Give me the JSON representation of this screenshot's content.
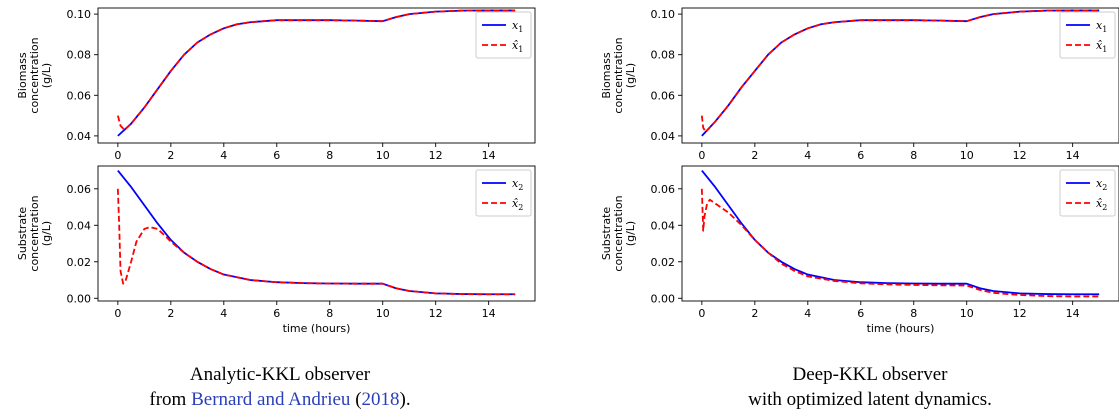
{
  "panels": [
    {
      "caption_line1": "Analytic-KKL observer",
      "caption_prefix": "from ",
      "caption_link": "Bernard and Andrieu",
      "caption_paren_open": " (",
      "caption_year": "2018",
      "caption_suffix": ")."
    },
    {
      "caption_line1": "Deep-KKL observer",
      "caption_line2": "with optimized latent dynamics."
    }
  ],
  "colors": {
    "true": "#0000ff",
    "est": "#ff0000"
  },
  "chart_data": [
    {
      "type": "line",
      "panel": "left-top",
      "ylabel": [
        "Biomass",
        "concentration",
        "(g/L)"
      ],
      "xlabel": "",
      "xlim": [
        -0.75,
        15.75
      ],
      "ylim": [
        0.0365,
        0.103
      ],
      "xticks": [
        0,
        2,
        4,
        6,
        8,
        10,
        12,
        14
      ],
      "yticks": [
        0.04,
        0.06,
        0.08,
        0.1
      ],
      "ytick_labels": [
        "0.04",
        "0.06",
        "0.08",
        "0.10"
      ],
      "legend": "top-right",
      "series": [
        {
          "name": "x_1",
          "style": "solid",
          "x": [
            0,
            0.5,
            1,
            1.5,
            2,
            2.5,
            3,
            3.5,
            4,
            4.5,
            5,
            6,
            7,
            8,
            9,
            10,
            10.5,
            11,
            12,
            13,
            14,
            15
          ],
          "y": [
            0.04,
            0.046,
            0.054,
            0.063,
            0.072,
            0.08,
            0.086,
            0.09,
            0.093,
            0.095,
            0.096,
            0.097,
            0.097,
            0.097,
            0.0968,
            0.0965,
            0.0985,
            0.1,
            0.1012,
            0.1017,
            0.1018,
            0.1018
          ]
        },
        {
          "name": "x̂_1",
          "style": "dashed",
          "x": [
            0,
            0.1,
            0.25,
            0.5,
            1,
            1.5,
            2,
            2.5,
            3,
            3.5,
            4,
            4.5,
            5,
            6,
            7,
            8,
            9,
            10,
            10.5,
            11,
            12,
            13,
            14,
            15
          ],
          "y": [
            0.05,
            0.045,
            0.043,
            0.046,
            0.054,
            0.063,
            0.072,
            0.08,
            0.086,
            0.09,
            0.093,
            0.095,
            0.096,
            0.097,
            0.097,
            0.097,
            0.0968,
            0.0965,
            0.0985,
            0.1,
            0.1012,
            0.1017,
            0.1018,
            0.1018
          ]
        }
      ]
    },
    {
      "type": "line",
      "panel": "left-bottom",
      "ylabel": [
        "Substrate",
        "concentration",
        "(g/L)"
      ],
      "xlabel": "time (hours)",
      "xlim": [
        -0.75,
        15.75
      ],
      "ylim": [
        -0.0015,
        0.0725
      ],
      "xticks": [
        0,
        2,
        4,
        6,
        8,
        10,
        12,
        14
      ],
      "yticks": [
        0,
        0.02,
        0.04,
        0.06
      ],
      "ytick_labels": [
        "0.00",
        "0.02",
        "0.04",
        "0.06"
      ],
      "legend": "top-right",
      "series": [
        {
          "name": "x_2",
          "style": "solid",
          "x": [
            0,
            0.5,
            1,
            1.5,
            2,
            2.5,
            3,
            3.5,
            4,
            5,
            6,
            7,
            8,
            9,
            10,
            10.5,
            11,
            12,
            13,
            14,
            15
          ],
          "y": [
            0.07,
            0.061,
            0.051,
            0.041,
            0.032,
            0.025,
            0.02,
            0.016,
            0.013,
            0.01,
            0.0088,
            0.0083,
            0.0081,
            0.008,
            0.008,
            0.0055,
            0.004,
            0.0027,
            0.0023,
            0.0022,
            0.0022
          ]
        },
        {
          "name": "x̂_2",
          "style": "dashed",
          "x": [
            0,
            0.05,
            0.1,
            0.2,
            0.3,
            0.5,
            0.7,
            1,
            1.2,
            1.5,
            1.8,
            2,
            2.5,
            3,
            3.5,
            4,
            5,
            6,
            7,
            8,
            9,
            10,
            10.5,
            11,
            12,
            13,
            14,
            15
          ],
          "y": [
            0.06,
            0.04,
            0.015,
            0.008,
            0.01,
            0.02,
            0.031,
            0.038,
            0.039,
            0.038,
            0.034,
            0.031,
            0.025,
            0.02,
            0.016,
            0.013,
            0.01,
            0.0088,
            0.0083,
            0.0081,
            0.008,
            0.008,
            0.0055,
            0.004,
            0.0027,
            0.0023,
            0.0022,
            0.0022
          ]
        }
      ]
    },
    {
      "type": "line",
      "panel": "right-top",
      "ylabel": [
        "Biomass",
        "concentration",
        "(g/L)"
      ],
      "xlabel": "",
      "xlim": [
        -0.75,
        15.75
      ],
      "ylim": [
        0.0365,
        0.103
      ],
      "xticks": [
        0,
        2,
        4,
        6,
        8,
        10,
        12,
        14
      ],
      "yticks": [
        0.04,
        0.06,
        0.08,
        0.1
      ],
      "ytick_labels": [
        "0.04",
        "0.06",
        "0.08",
        "0.10"
      ],
      "legend": "top-right",
      "series": [
        {
          "name": "x_1",
          "style": "solid",
          "x": [
            0,
            0.5,
            1,
            1.5,
            2,
            2.5,
            3,
            3.5,
            4,
            4.5,
            5,
            6,
            7,
            8,
            9,
            10,
            10.5,
            11,
            12,
            13,
            14,
            15
          ],
          "y": [
            0.04,
            0.047,
            0.055,
            0.064,
            0.072,
            0.08,
            0.086,
            0.09,
            0.093,
            0.095,
            0.096,
            0.097,
            0.097,
            0.097,
            0.0968,
            0.0965,
            0.0985,
            0.1,
            0.1012,
            0.1017,
            0.1018,
            0.1018
          ]
        },
        {
          "name": "x̂_1",
          "style": "dashed",
          "x": [
            0,
            0.05,
            0.15,
            0.5,
            1,
            1.5,
            2,
            2.5,
            3,
            3.5,
            4,
            4.5,
            5,
            6,
            7,
            8,
            9,
            10,
            10.5,
            11,
            12,
            13,
            14,
            15
          ],
          "y": [
            0.05,
            0.044,
            0.042,
            0.047,
            0.055,
            0.064,
            0.072,
            0.08,
            0.086,
            0.09,
            0.093,
            0.095,
            0.096,
            0.097,
            0.097,
            0.097,
            0.0968,
            0.0965,
            0.0985,
            0.1,
            0.1012,
            0.1017,
            0.1018,
            0.1018
          ]
        }
      ]
    },
    {
      "type": "line",
      "panel": "right-bottom",
      "ylabel": [
        "Substrate",
        "concentration",
        "(g/L)"
      ],
      "xlabel": "time (hours)",
      "xlim": [
        -0.75,
        15.75
      ],
      "ylim": [
        -0.0015,
        0.0725
      ],
      "xticks": [
        0,
        2,
        4,
        6,
        8,
        10,
        12,
        14
      ],
      "yticks": [
        0,
        0.02,
        0.04,
        0.06
      ],
      "ytick_labels": [
        "0.00",
        "0.02",
        "0.04",
        "0.06"
      ],
      "legend": "top-right",
      "series": [
        {
          "name": "x_2",
          "style": "solid",
          "x": [
            0,
            0.5,
            1,
            1.5,
            2,
            2.5,
            3,
            3.5,
            4,
            5,
            6,
            7,
            8,
            9,
            10,
            10.5,
            11,
            12,
            13,
            14,
            15
          ],
          "y": [
            0.07,
            0.061,
            0.051,
            0.041,
            0.032,
            0.025,
            0.02,
            0.016,
            0.013,
            0.01,
            0.0088,
            0.0083,
            0.0081,
            0.008,
            0.008,
            0.0055,
            0.004,
            0.0027,
            0.0023,
            0.0022,
            0.0022
          ]
        },
        {
          "name": "x̂_2",
          "style": "dashed",
          "x": [
            0,
            0.05,
            0.1,
            0.2,
            0.3,
            0.5,
            0.8,
            1,
            1.5,
            2,
            2.5,
            3,
            3.5,
            4,
            5,
            6,
            7,
            8,
            9,
            10,
            10.5,
            11,
            12,
            13,
            14,
            15
          ],
          "y": [
            0.06,
            0.037,
            0.045,
            0.052,
            0.054,
            0.052,
            0.049,
            0.047,
            0.04,
            0.032,
            0.025,
            0.019,
            0.015,
            0.012,
            0.0095,
            0.0082,
            0.0076,
            0.0073,
            0.0071,
            0.007,
            0.0045,
            0.003,
            0.0018,
            0.0012,
            0.001,
            0.001
          ]
        }
      ]
    }
  ]
}
